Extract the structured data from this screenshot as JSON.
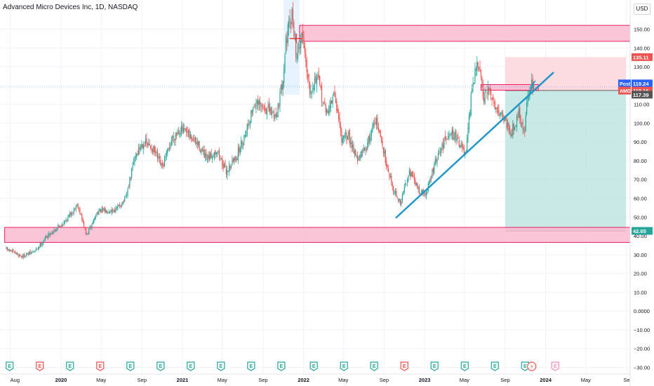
{
  "header": {
    "title": "Advanced Micro Devices Inc, 1D, NASDAQ",
    "currency": "USD"
  },
  "colors": {
    "up": "#26a69a",
    "down": "#ef5350",
    "zone_fill": "#f8bbd0",
    "zone_stroke": "#e91e63",
    "trendline": "#2196c8",
    "target_box": "#b2dfdb",
    "stop_box": "#fcd6db",
    "price_tag_red": "#ef5350",
    "price_tag_teal": "#26a69a",
    "earnings_green": "#26a69a",
    "earnings_red": "#ef5350"
  },
  "chart_data": {
    "type": "candlestick",
    "title": "Advanced Micro Devices Inc, 1D, NASDAQ",
    "y_axis": {
      "ticks": [
        "150.00",
        "140.00",
        "130.00",
        "120.00",
        "110.00",
        "100.00",
        "90.00",
        "80.00",
        "70.00",
        "60.00",
        "50.00",
        "40.00",
        "30.00",
        "20.00",
        "10.00",
        "0.0000",
        "−10.00",
        "−20.00",
        "−30.00"
      ],
      "values": [
        150,
        140,
        130,
        120,
        110,
        100,
        90,
        80,
        70,
        60,
        50,
        40,
        30,
        20,
        10,
        0,
        -10,
        -20,
        -30
      ],
      "ylim": [
        -33,
        160
      ]
    },
    "x_axis": {
      "ticks": [
        "Aug",
        "2020",
        "May",
        "Sep",
        "2021",
        "May",
        "Sep",
        "2022",
        "May",
        "Sep",
        "2023",
        "May",
        "Sep",
        "2024",
        "May",
        "Se"
      ],
      "dates": [
        "2019-08-01",
        "2020-01-01",
        "2020-05-01",
        "2020-09-01",
        "2021-01-01",
        "2021-05-01",
        "2021-09-01",
        "2022-01-01",
        "2022-05-01",
        "2022-09-01",
        "2023-01-01",
        "2023-05-01",
        "2023-09-01",
        "2024-01-01",
        "2024-05-01",
        "2024-09-01"
      ]
    },
    "price_path": [
      [
        "2019-07-20",
        33
      ],
      [
        "2019-09-05",
        29
      ],
      [
        "2019-10-15",
        32
      ],
      [
        "2019-11-20",
        40
      ],
      [
        "2020-01-15",
        48
      ],
      [
        "2020-02-20",
        57
      ],
      [
        "2020-03-18",
        40
      ],
      [
        "2020-04-20",
        53
      ],
      [
        "2020-06-15",
        54
      ],
      [
        "2020-07-15",
        60
      ],
      [
        "2020-08-10",
        82
      ],
      [
        "2020-09-05",
        90
      ],
      [
        "2020-10-05",
        86
      ],
      [
        "2020-11-01",
        76
      ],
      [
        "2020-12-01",
        92
      ],
      [
        "2020-12-25",
        97
      ],
      [
        "2021-01-15",
        94
      ],
      [
        "2021-02-20",
        88
      ],
      [
        "2021-03-15",
        80
      ],
      [
        "2021-04-15",
        86
      ],
      [
        "2021-05-12",
        74
      ],
      [
        "2021-06-15",
        83
      ],
      [
        "2021-07-10",
        95
      ],
      [
        "2021-08-05",
        110
      ],
      [
        "2021-09-05",
        108
      ],
      [
        "2021-10-10",
        104
      ],
      [
        "2021-10-28",
        120
      ],
      [
        "2021-11-10",
        145
      ],
      [
        "2021-11-29",
        158
      ],
      [
        "2021-12-10",
        135
      ],
      [
        "2021-12-28",
        148
      ],
      [
        "2022-01-20",
        118
      ],
      [
        "2022-02-10",
        125
      ],
      [
        "2022-03-10",
        105
      ],
      [
        "2022-04-05",
        115
      ],
      [
        "2022-04-28",
        90
      ],
      [
        "2022-05-15",
        94
      ],
      [
        "2022-06-15",
        80
      ],
      [
        "2022-07-15",
        90
      ],
      [
        "2022-08-05",
        103
      ],
      [
        "2022-09-01",
        84
      ],
      [
        "2022-09-28",
        65
      ],
      [
        "2022-10-20",
        57
      ],
      [
        "2022-11-15",
        75
      ],
      [
        "2022-12-15",
        64
      ],
      [
        "2023-01-05",
        62
      ],
      [
        "2023-01-31",
        78
      ],
      [
        "2023-02-15",
        84
      ],
      [
        "2023-03-15",
        96
      ],
      [
        "2023-04-10",
        92
      ],
      [
        "2023-05-05",
        82
      ],
      [
        "2023-05-26",
        122
      ],
      [
        "2023-06-13",
        132
      ],
      [
        "2023-06-28",
        112
      ],
      [
        "2023-07-15",
        118
      ],
      [
        "2023-08-05",
        108
      ],
      [
        "2023-08-25",
        104
      ],
      [
        "2023-09-20",
        95
      ],
      [
        "2023-10-12",
        106
      ],
      [
        "2023-10-28",
        94
      ],
      [
        "2023-11-08",
        115
      ],
      [
        "2023-11-20",
        120
      ],
      [
        "2023-11-28",
        122
      ]
    ],
    "annotations": {
      "resistance_zone": {
        "from": "2021-12-20",
        "to": "2024-09-30",
        "low": 143.5,
        "high": 152
      },
      "support_zone": {
        "from": "2019-07-15",
        "to": "2024-09-30",
        "low": 36.5,
        "high": 44.5
      },
      "upper_small_zone": {
        "from": "2023-06-20",
        "to": "2023-12-10",
        "low": 117.5,
        "high": 120.5
      },
      "peak_highlight": {
        "from": "2021-11-02",
        "to": "2021-12-20",
        "low": 115,
        "high": 160
      },
      "horizontal_marker": {
        "from": "2021-11-20",
        "to": "2021-12-28",
        "price": 145
      },
      "trendline": {
        "from": [
          "2022-10-06",
          49.5
        ],
        "to": [
          "2024-01-25",
          127
        ]
      },
      "long_position": {
        "from": "2023-09-01",
        "to": "2024-08-30",
        "entry": 117.39,
        "target": 135.11,
        "stop": 42.65
      }
    },
    "price_labels": [
      {
        "text": "135.11",
        "value": 135.11,
        "color": "#ef5350"
      },
      {
        "text": "119.24",
        "value": 119.24,
        "color": "#2962ff",
        "tag": "Post"
      },
      {
        "text": "119.16",
        "value": 119.16,
        "color": "#ef5350",
        "tag": "AMD"
      },
      {
        "text": "117.39",
        "value": 117.39,
        "color": "#555555"
      },
      {
        "text": "42.65",
        "value": 42.65,
        "color": "#26a69a"
      }
    ],
    "events": [
      {
        "label": "E",
        "type": "earnings",
        "color": "green",
        "date": "2019-07-30"
      },
      {
        "label": "E",
        "type": "earnings",
        "color": "red",
        "date": "2019-10-29"
      },
      {
        "label": "E",
        "type": "earnings",
        "color": "green",
        "date": "2020-01-28"
      },
      {
        "label": "E",
        "type": "earnings",
        "color": "red",
        "date": "2020-04-28"
      },
      {
        "label": "E",
        "type": "earnings",
        "color": "green",
        "date": "2020-07-28"
      },
      {
        "label": "E",
        "type": "earnings",
        "color": "green",
        "date": "2020-10-27"
      },
      {
        "label": "E",
        "type": "earnings",
        "color": "green",
        "date": "2021-01-26"
      },
      {
        "label": "E",
        "type": "earnings",
        "color": "green",
        "date": "2021-04-27"
      },
      {
        "label": "E",
        "type": "earnings",
        "color": "green",
        "date": "2021-07-27"
      },
      {
        "label": "E",
        "type": "earnings",
        "color": "green",
        "date": "2021-10-26"
      },
      {
        "label": "E",
        "type": "earnings",
        "color": "green",
        "date": "2022-02-01"
      },
      {
        "label": "E",
        "type": "earnings",
        "color": "green",
        "date": "2022-05-03"
      },
      {
        "label": "E",
        "type": "earnings",
        "color": "green",
        "date": "2022-08-02"
      },
      {
        "label": "E",
        "type": "earnings",
        "color": "red",
        "date": "2022-11-01"
      },
      {
        "label": "E",
        "type": "earnings",
        "color": "green",
        "date": "2023-01-31"
      },
      {
        "label": "E",
        "type": "earnings",
        "color": "green",
        "date": "2023-05-02"
      },
      {
        "label": "E",
        "type": "earnings",
        "color": "green",
        "date": "2023-08-01"
      },
      {
        "label": "E",
        "type": "earnings",
        "color": "green",
        "date": "2023-10-31"
      },
      {
        "label": "⚡",
        "type": "dividend-split",
        "color": "red",
        "date": "2023-11-20"
      },
      {
        "label": "E",
        "type": "earnings",
        "color": "pink",
        "date": "2024-01-30"
      }
    ]
  }
}
